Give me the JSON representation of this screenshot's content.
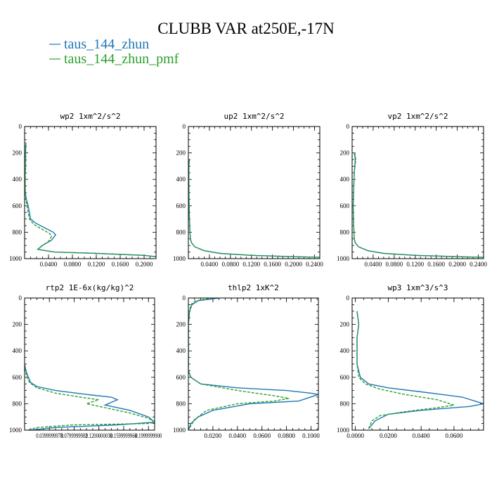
{
  "figure": {
    "title": "CLUBB VAR at250E,-17N",
    "legend": [
      {
        "name": "taus_144_zhun",
        "color": "#1f77b4"
      },
      {
        "name": "taus_144_zhun_pmf",
        "color": "#2ca02c"
      }
    ]
  },
  "chart_data": [
    {
      "type": "line",
      "title": "wp2  1xm^2/s^2",
      "xlim": [
        0,
        0.22
      ],
      "ylim": [
        1000,
        0
      ],
      "yticks": [
        0,
        200,
        400,
        600,
        800,
        1000
      ],
      "xticks": [
        0.04,
        0.08,
        0.12,
        0.16,
        0.2
      ],
      "xticklabels": [
        "0.0400",
        "0.0800",
        "0.1200",
        "0.1600",
        "0.2000"
      ],
      "series": [
        {
          "name": "taus_144_zhun",
          "color": "#1f77b4",
          "dashed": false,
          "x": [
            0.002,
            0.001,
            0.0005,
            0.001,
            0.003,
            0.006,
            0.008,
            0.01,
            0.018,
            0.035,
            0.048,
            0.052,
            0.045,
            0.03,
            0.022,
            0.05,
            0.12,
            0.2,
            0.22
          ],
          "y": [
            120,
            250,
            400,
            500,
            550,
            600,
            650,
            700,
            730,
            770,
            800,
            820,
            860,
            900,
            930,
            950,
            960,
            975,
            985
          ]
        },
        {
          "name": "taus_144_zhun_pmf",
          "color": "#2ca02c",
          "dashed": true,
          "x": [
            0.002,
            0.002,
            0.001,
            0.001,
            0.002,
            0.004,
            0.006,
            0.008,
            0.015,
            0.03,
            0.042,
            0.045,
            0.04,
            0.028,
            0.022,
            0.05,
            0.12,
            0.2,
            0.22
          ],
          "y": [
            120,
            250,
            400,
            500,
            550,
            600,
            650,
            700,
            740,
            780,
            810,
            830,
            870,
            905,
            930,
            950,
            960,
            975,
            985
          ]
        }
      ]
    },
    {
      "type": "line",
      "title": "up2  1xm^2/s^2",
      "xlim": [
        0,
        0.25
      ],
      "ylim": [
        1000,
        0
      ],
      "yticks": [
        0,
        200,
        400,
        600,
        800,
        1000
      ],
      "xticks": [
        0.04,
        0.08,
        0.12,
        0.16,
        0.2,
        0.24
      ],
      "xticklabels": [
        "0.0400",
        "0.0800",
        "0.1200",
        "0.1600",
        "0.2000",
        "0.2400"
      ],
      "series": [
        {
          "name": "taus_144_zhun",
          "color": "#1f77b4",
          "dashed": false,
          "x": [
            0.002,
            0.001,
            0.001,
            0.002,
            0.003,
            0.004,
            0.006,
            0.012,
            0.03,
            0.06,
            0.12,
            0.2,
            0.25
          ],
          "y": [
            250,
            300,
            500,
            700,
            800,
            850,
            880,
            910,
            940,
            960,
            975,
            985,
            990
          ]
        },
        {
          "name": "taus_144_zhun_pmf",
          "color": "#2ca02c",
          "dashed": true,
          "x": [
            0.002,
            0.001,
            0.001,
            0.002,
            0.003,
            0.004,
            0.006,
            0.012,
            0.03,
            0.06,
            0.12,
            0.2,
            0.25
          ],
          "y": [
            250,
            300,
            500,
            700,
            800,
            850,
            880,
            910,
            940,
            960,
            975,
            985,
            990
          ]
        }
      ]
    },
    {
      "type": "line",
      "title": "vp2  1xm^2/s^2",
      "xlim": [
        0,
        0.25
      ],
      "ylim": [
        1000,
        0
      ],
      "yticks": [
        0,
        200,
        400,
        600,
        800,
        1000
      ],
      "xticks": [
        0.04,
        0.08,
        0.12,
        0.16,
        0.2,
        0.24
      ],
      "xticklabels": [
        "0.0400",
        "0.0800",
        "0.1200",
        "0.1600",
        "0.2000",
        "0.2400"
      ],
      "series": [
        {
          "name": "taus_144_zhun",
          "color": "#1f77b4",
          "dashed": false,
          "x": [
            0.004,
            0.006,
            0.004,
            0.002,
            0.003,
            0.004,
            0.006,
            0.012,
            0.03,
            0.06,
            0.12,
            0.2,
            0.25
          ],
          "y": [
            200,
            250,
            350,
            600,
            750,
            850,
            880,
            910,
            940,
            960,
            975,
            985,
            990
          ]
        },
        {
          "name": "taus_144_zhun_pmf",
          "color": "#2ca02c",
          "dashed": true,
          "x": [
            0.005,
            0.007,
            0.004,
            0.002,
            0.003,
            0.004,
            0.006,
            0.012,
            0.03,
            0.06,
            0.12,
            0.2,
            0.25
          ],
          "y": [
            200,
            250,
            350,
            600,
            750,
            850,
            880,
            910,
            940,
            960,
            975,
            985,
            990
          ]
        }
      ]
    },
    {
      "type": "line",
      "title": "rtp2  1E-6x(kg/kg)^2",
      "xlim": [
        0,
        0.21
      ],
      "ylim": [
        1000,
        0
      ],
      "yticks": [
        0,
        200,
        400,
        600,
        800,
        1000
      ],
      "xticks": [
        0.04,
        0.08,
        0.12,
        0.16,
        0.2
      ],
      "xticklabels": [
        "0.0399999978",
        "0.0799999982",
        "0.1200000030",
        "0.1599999960",
        "0.1999999900"
      ],
      "series": [
        {
          "name": "taus_144_zhun",
          "color": "#1f77b4",
          "dashed": false,
          "x": [
            0.0,
            0.002,
            0.006,
            0.01,
            0.02,
            0.05,
            0.1,
            0.14,
            0.15,
            0.14,
            0.13,
            0.17,
            0.2,
            0.21,
            0.15,
            0.05,
            0.01
          ],
          "y": [
            500,
            550,
            600,
            640,
            670,
            700,
            730,
            750,
            770,
            790,
            810,
            850,
            900,
            940,
            960,
            980,
            1000
          ]
        },
        {
          "name": "taus_144_zhun_pmf",
          "color": "#2ca02c",
          "dashed": true,
          "x": [
            0.0,
            0.001,
            0.004,
            0.008,
            0.02,
            0.05,
            0.09,
            0.12,
            0.1,
            0.13,
            0.17,
            0.2,
            0.21,
            0.2,
            0.08,
            0.02,
            0.005
          ],
          "y": [
            500,
            550,
            600,
            640,
            680,
            720,
            750,
            770,
            800,
            830,
            870,
            910,
            940,
            950,
            960,
            980,
            1000
          ]
        }
      ]
    },
    {
      "type": "line",
      "title": "thlp2  1xK^2",
      "xlim": [
        0,
        0.106
      ],
      "ylim": [
        1000,
        0
      ],
      "yticks": [
        0,
        200,
        400,
        600,
        800,
        1000
      ],
      "xticks": [
        0.02,
        0.04,
        0.06,
        0.08,
        0.1
      ],
      "xticklabels": [
        "0.0200",
        "0.0400",
        "0.0600",
        "0.0800",
        "0.1000"
      ],
      "series": [
        {
          "name": "taus_144_zhun",
          "color": "#1f77b4",
          "dashed": false,
          "x": [
            0.025,
            0.008,
            0.003,
            0.001,
            0.0,
            0.0,
            0.0,
            0.002,
            0.01,
            0.04,
            0.08,
            0.1,
            0.106,
            0.09,
            0.05,
            0.02,
            0.008,
            0.002,
            0.0
          ],
          "y": [
            0,
            20,
            50,
            100,
            200,
            400,
            550,
            600,
            650,
            680,
            700,
            720,
            730,
            780,
            800,
            850,
            900,
            950,
            1000
          ]
        },
        {
          "name": "taus_144_zhun_pmf",
          "color": "#2ca02c",
          "dashed": true,
          "x": [
            0.02,
            0.006,
            0.002,
            0.001,
            0.0,
            0.0,
            0.0,
            0.002,
            0.01,
            0.04,
            0.07,
            0.082,
            0.07,
            0.04,
            0.015,
            0.005,
            0.0
          ],
          "y": [
            0,
            20,
            50,
            100,
            200,
            400,
            550,
            600,
            650,
            700,
            740,
            760,
            780,
            800,
            850,
            920,
            1000
          ]
        }
      ]
    },
    {
      "type": "line",
      "title": "wp3  1xm^3/s^3",
      "xlim": [
        -0.002,
        0.078
      ],
      "ylim": [
        1000,
        0
      ],
      "yticks": [
        0,
        200,
        400,
        600,
        800,
        1000
      ],
      "xticks": [
        0.0,
        0.02,
        0.04,
        0.06
      ],
      "xticklabels": [
        "0.0000",
        "0.0200",
        "0.0400",
        "0.0600"
      ],
      "series": [
        {
          "name": "taus_144_zhun",
          "color": "#1f77b4",
          "dashed": false,
          "x": [
            0.001,
            0.002,
            0.001,
            0.001,
            0.003,
            0.008,
            0.02,
            0.04,
            0.065,
            0.078,
            0.07,
            0.04,
            0.02,
            0.012,
            0.008
          ],
          "y": [
            100,
            200,
            300,
            500,
            600,
            650,
            680,
            710,
            750,
            800,
            820,
            850,
            880,
            930,
            990
          ]
        },
        {
          "name": "taus_144_zhun_pmf",
          "color": "#2ca02c",
          "dashed": true,
          "x": [
            0.001,
            0.002,
            0.001,
            0.001,
            0.002,
            0.006,
            0.015,
            0.03,
            0.05,
            0.06,
            0.05,
            0.03,
            0.015,
            0.01,
            0.008
          ],
          "y": [
            100,
            200,
            300,
            500,
            600,
            650,
            690,
            730,
            770,
            810,
            830,
            860,
            890,
            930,
            990
          ]
        }
      ]
    }
  ]
}
